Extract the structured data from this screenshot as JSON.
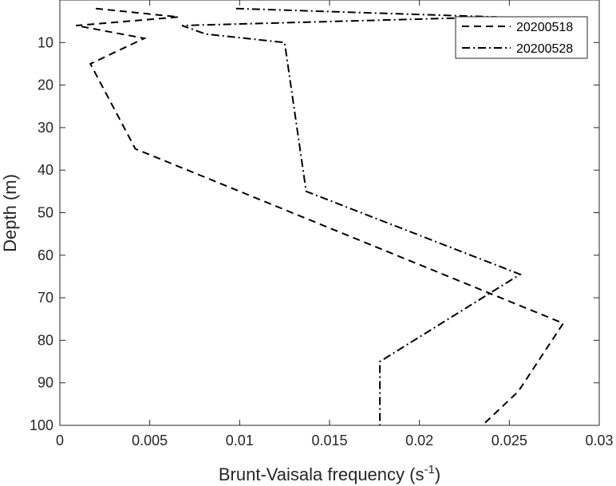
{
  "chart_data": {
    "type": "line",
    "xlabel_main": "Brunt-Vaisala frequency (s",
    "xlabel_sup": "-1",
    "xlabel_end": ")",
    "ylabel": "Depth (m)",
    "xlim": [
      0,
      0.03
    ],
    "ylim": [
      0,
      100
    ],
    "y_reversed": true,
    "xticks": [
      "0",
      "0.005",
      "0.01",
      "0.015",
      "0.02",
      "0.025",
      "0.03"
    ],
    "yticks": [
      "10",
      "20",
      "30",
      "40",
      "50",
      "60",
      "70",
      "80",
      "90",
      "100"
    ],
    "grid": false,
    "legend_position": "top-right",
    "series": [
      {
        "name": "20200518",
        "style": "dashed",
        "color": "#000000",
        "x": [
          0.002,
          0.0066,
          0.0009,
          0.0047,
          0.0017,
          0.0042,
          0.028,
          0.0255,
          0.0235
        ],
        "y": [
          2,
          4,
          6,
          9,
          15,
          35,
          76,
          92,
          100
        ]
      },
      {
        "name": "20200528",
        "style": "dashdot",
        "color": "#000000",
        "x": [
          0.0098,
          0.0243,
          0.0068,
          0.0081,
          0.0125,
          0.0137,
          0.0256,
          0.0178,
          0.0178
        ],
        "y": [
          2,
          4,
          6,
          8,
          10,
          45,
          64.5,
          85,
          100
        ]
      }
    ]
  }
}
